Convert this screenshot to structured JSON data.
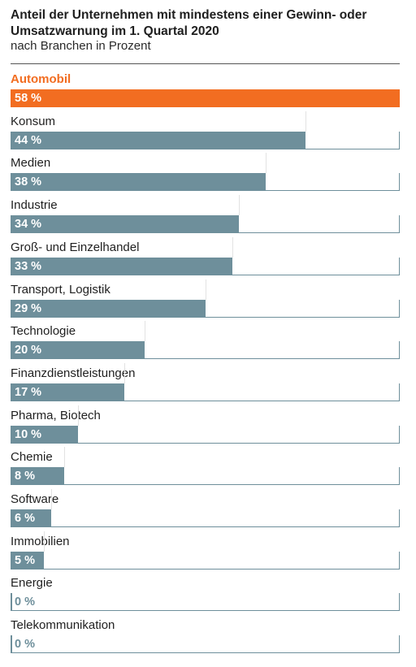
{
  "chart_data": {
    "type": "bar",
    "orientation": "horizontal",
    "title": "Anteil der Unternehmen mit mindestens einer Gewinn- oder Umsatzwarnung im 1. Quartal 2020",
    "subtitle": "nach Branchen in Prozent",
    "xlim": [
      0,
      58
    ],
    "unit": "%",
    "colors": {
      "highlight": "#f26d21",
      "default": "#6e8f9b"
    },
    "highlight_index": 0,
    "categories": [
      "Automobil",
      "Konsum",
      "Medien",
      "Industrie",
      "Groß- und Einzelhandel",
      "Transport, Logistik",
      "Technologie",
      "Finanzdienstleistungen",
      "Pharma, Biotech",
      "Chemie",
      "Software",
      "Immobilien",
      "Energie",
      "Telekommunikation"
    ],
    "values": [
      58,
      44,
      38,
      34,
      33,
      29,
      20,
      17,
      10,
      8,
      6,
      5,
      0,
      0
    ],
    "value_labels": [
      "58 %",
      "44 %",
      "38 %",
      "34 %",
      "33 %",
      "29 %",
      "20 %",
      "17 %",
      "10 %",
      "8 %",
      "6 %",
      "5 %",
      "0 %",
      "0 %"
    ]
  }
}
